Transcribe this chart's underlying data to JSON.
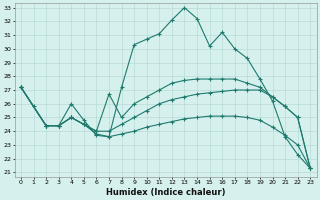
{
  "xlabel": "Humidex (Indice chaleur)",
  "bg_color": "#d6f0ee",
  "grid_color": "#b8dbd8",
  "line_color": "#1e7a6d",
  "xlim": [
    -0.5,
    23.5
  ],
  "ylim": [
    20.7,
    33.3
  ],
  "yticks": [
    21,
    22,
    23,
    24,
    25,
    26,
    27,
    28,
    29,
    30,
    31,
    32,
    33
  ],
  "xticks": [
    0,
    1,
    2,
    3,
    4,
    5,
    6,
    7,
    8,
    9,
    10,
    11,
    12,
    13,
    14,
    15,
    16,
    17,
    18,
    19,
    20,
    21,
    22,
    23
  ],
  "line1_x": [
    0,
    1,
    2,
    3,
    4,
    5,
    6,
    7,
    8,
    9,
    10,
    11,
    12,
    13,
    14,
    15,
    16,
    17,
    18,
    19,
    20,
    21,
    22,
    23
  ],
  "line1_y": [
    27.2,
    25.8,
    24.4,
    24.4,
    26.0,
    24.8,
    23.7,
    23.6,
    27.2,
    30.3,
    30.7,
    31.1,
    32.1,
    33.0,
    32.2,
    30.2,
    31.2,
    30.0,
    29.3,
    27.8,
    26.2,
    23.6,
    22.3,
    21.3
  ],
  "line2_x": [
    0,
    2,
    3,
    4,
    5,
    6,
    7,
    8,
    9,
    10,
    11,
    12,
    13,
    14,
    15,
    16,
    17,
    18,
    19,
    20,
    21,
    22,
    23
  ],
  "line2_y": [
    27.2,
    24.4,
    24.4,
    25.0,
    24.5,
    24.0,
    26.7,
    25.0,
    26.0,
    26.5,
    27.0,
    27.5,
    27.7,
    27.8,
    27.8,
    27.8,
    27.8,
    27.5,
    27.2,
    26.5,
    25.8,
    25.0,
    21.3
  ],
  "line3_x": [
    0,
    2,
    3,
    4,
    5,
    6,
    7,
    8,
    9,
    10,
    11,
    12,
    13,
    14,
    15,
    16,
    17,
    18,
    19,
    20,
    21,
    22,
    23
  ],
  "line3_y": [
    27.2,
    24.4,
    24.4,
    25.0,
    24.5,
    24.0,
    24.0,
    24.5,
    25.0,
    25.5,
    26.0,
    26.3,
    26.5,
    26.7,
    26.8,
    26.9,
    27.0,
    27.0,
    27.0,
    26.5,
    25.8,
    25.0,
    21.3
  ],
  "line4_x": [
    0,
    2,
    3,
    4,
    5,
    6,
    7,
    8,
    9,
    10,
    11,
    12,
    13,
    14,
    15,
    16,
    17,
    18,
    19,
    20,
    21,
    22,
    23
  ],
  "line4_y": [
    27.2,
    24.4,
    24.4,
    25.0,
    24.5,
    23.8,
    23.6,
    23.8,
    24.0,
    24.3,
    24.5,
    24.7,
    24.9,
    25.0,
    25.1,
    25.1,
    25.1,
    25.0,
    24.8,
    24.3,
    23.7,
    23.0,
    21.3
  ]
}
